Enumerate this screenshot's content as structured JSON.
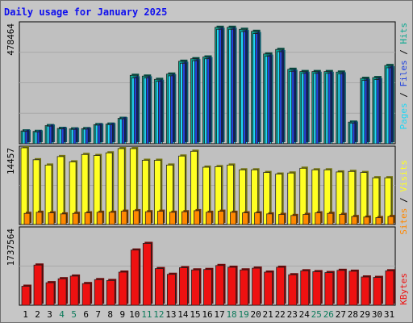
{
  "chart_data": {
    "type": "bar",
    "title": "Daily usage for January 2025",
    "categories": [
      "1",
      "2",
      "3",
      "4",
      "5",
      "6",
      "7",
      "8",
      "9",
      "10",
      "11",
      "12",
      "13",
      "14",
      "15",
      "16",
      "17",
      "18",
      "19",
      "20",
      "21",
      "22",
      "23",
      "24",
      "25",
      "26",
      "27",
      "28",
      "29",
      "30",
      "31"
    ],
    "weekend_days": [
      "4",
      "5",
      "11",
      "12",
      "18",
      "19",
      "25",
      "26"
    ],
    "panels": [
      {
        "id": "hits",
        "ymax_label": "478464",
        "ylim": [
          0,
          478464
        ],
        "series": [
          {
            "name": "Hits",
            "color": "#0aa890",
            "values": [
              51000,
              49000,
              72000,
              61000,
              59000,
              60000,
              76000,
              78000,
              101000,
              272000,
              269000,
              256000,
              277000,
              328000,
              338000,
              345000,
              463000,
              463000,
              455000,
              447000,
              357000,
              375000,
              296000,
              287000,
              287000,
              287000,
              285000,
              86000,
              260000,
              263000,
              311000
            ]
          },
          {
            "name": "Files",
            "color": "#2244dd",
            "values": [
              49000,
              47000,
              70000,
              59000,
              57000,
              58000,
              74000,
              76000,
              99000,
              262000,
              262000,
              248000,
              270000,
              320000,
              330000,
              338000,
              455000,
              455000,
              446000,
              438000,
              348000,
              366000,
              288000,
              280000,
              280000,
              280000,
              278000,
              82000,
              252000,
              255000,
              302000
            ]
          },
          {
            "name": "Pages",
            "color": "#1ed6f5",
            "values": [
              49000,
              47000,
              70000,
              59000,
              57000,
              58000,
              74000,
              76000,
              99000,
              262000,
              262000,
              248000,
              270000,
              320000,
              330000,
              338000,
              455000,
              455000,
              446000,
              438000,
              348000,
              366000,
              288000,
              280000,
              280000,
              280000,
              278000,
              82000,
              252000,
              255000,
              302000
            ]
          }
        ]
      },
      {
        "id": "visits",
        "ymax_label": "14457",
        "ylim": [
          0,
          14457
        ],
        "series": [
          {
            "name": "Visits",
            "color": "#ffff22",
            "values": [
              14457,
              12200,
              11200,
              12800,
              11800,
              13200,
              13000,
              13500,
              14300,
              14300,
              12100,
              12100,
              11200,
              12900,
              13800,
              10800,
              10900,
              11200,
              10300,
              10300,
              9800,
              9500,
              9700,
              10600,
              10300,
              10300,
              9900,
              10000,
              9800,
              8800,
              8800
            ]
          },
          {
            "name": "Sites",
            "color": "#ff8800",
            "values": [
              2100,
              2300,
              2200,
              2000,
              2100,
              2200,
              2300,
              2300,
              2500,
              2600,
              2400,
              2500,
              2300,
              2400,
              2600,
              2300,
              2500,
              2300,
              2200,
              2200,
              2000,
              1900,
              1700,
              1900,
              2200,
              2100,
              1900,
              1500,
              1400,
              1300,
              1500
            ]
          }
        ]
      },
      {
        "id": "kbytes",
        "ymax_label": "1737564",
        "ylim": [
          0,
          1737564
        ],
        "series": [
          {
            "name": "KBytes",
            "color": "#ee1111",
            "values": [
              430000,
              910000,
              510000,
              600000,
              660000,
              490000,
              580000,
              560000,
              750000,
              1250000,
              1400000,
              830000,
              700000,
              850000,
              800000,
              810000,
              900000,
              860000,
              800000,
              840000,
              750000,
              860000,
              690000,
              780000,
              760000,
              740000,
              790000,
              770000,
              640000,
              630000,
              780000
            ]
          }
        ]
      }
    ],
    "grid": true,
    "legend": "right"
  }
}
